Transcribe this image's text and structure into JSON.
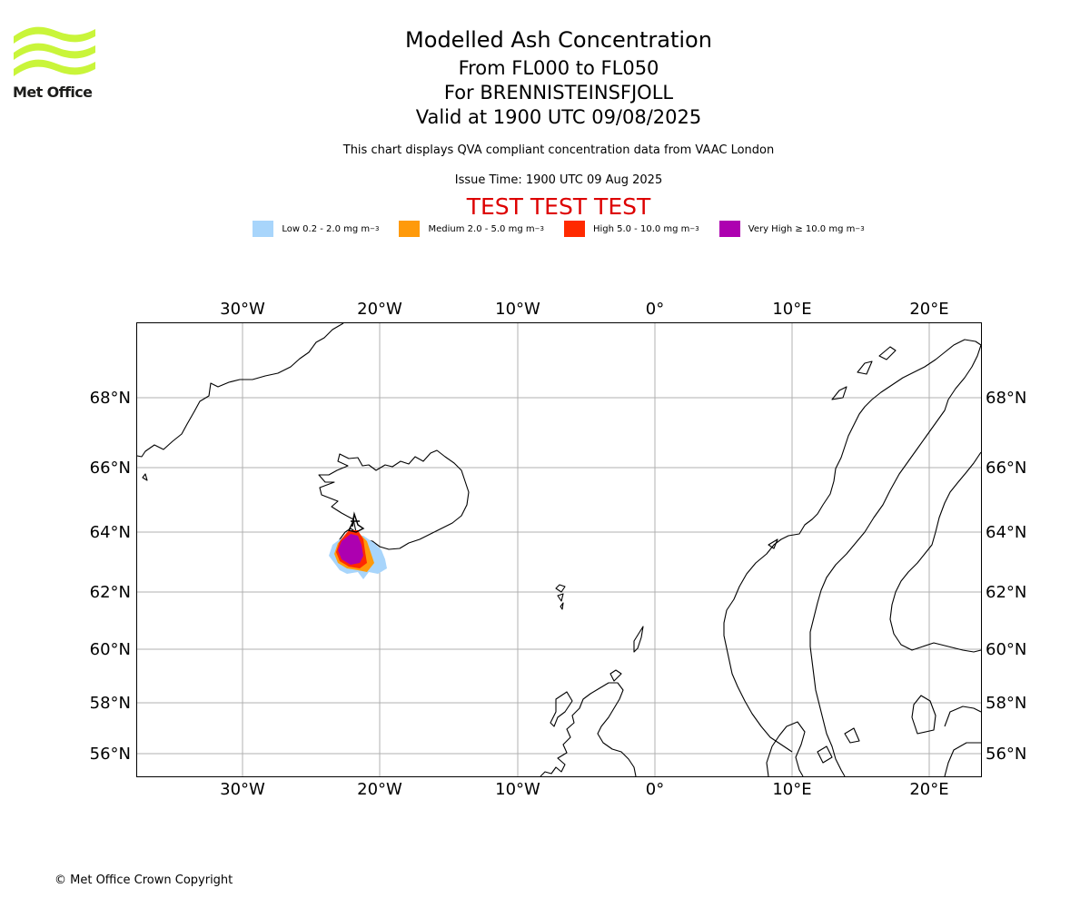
{
  "logo": {
    "name": "Met Office"
  },
  "header": {
    "title": "Modelled Ash Concentration",
    "flight_levels": "From FL000 to FL050",
    "volcano": "For BRENNISTEINSFJOLL",
    "valid_time": "Valid at 1900 UTC 09/08/2025",
    "description": "This chart displays QVA compliant concentration data from VAAC London",
    "issue_time": "Issue Time: 1900 UTC 09 Aug 2025",
    "test_banner": "TEST TEST TEST"
  },
  "legend": [
    {
      "label": "Low 0.2 - 2.0 mg m",
      "unit_exp": "−3",
      "color": "#a8d5fb"
    },
    {
      "label": "Medium 2.0 - 5.0 mg m",
      "unit_exp": "−3",
      "color": "#ff9a0a"
    },
    {
      "label": "High 5.0 - 10.0 mg m",
      "unit_exp": "−3",
      "color": "#ff2a00"
    },
    {
      "label": "Very High  ≥  10.0 mg m",
      "unit_exp": "−3",
      "color": "#ad00b0"
    }
  ],
  "map": {
    "lon_labels": [
      "30°W",
      "20°W",
      "10°W",
      "0°",
      "10°E",
      "20°E"
    ],
    "lat_labels": [
      "68°N",
      "66°N",
      "64°N",
      "62°N",
      "60°N",
      "58°N",
      "56°N"
    ],
    "gridlines": true,
    "grid_color": "#b0b0b0",
    "coast_color": "#000000"
  },
  "footer": {
    "copyright": "© Met Office Crown Copyright"
  }
}
